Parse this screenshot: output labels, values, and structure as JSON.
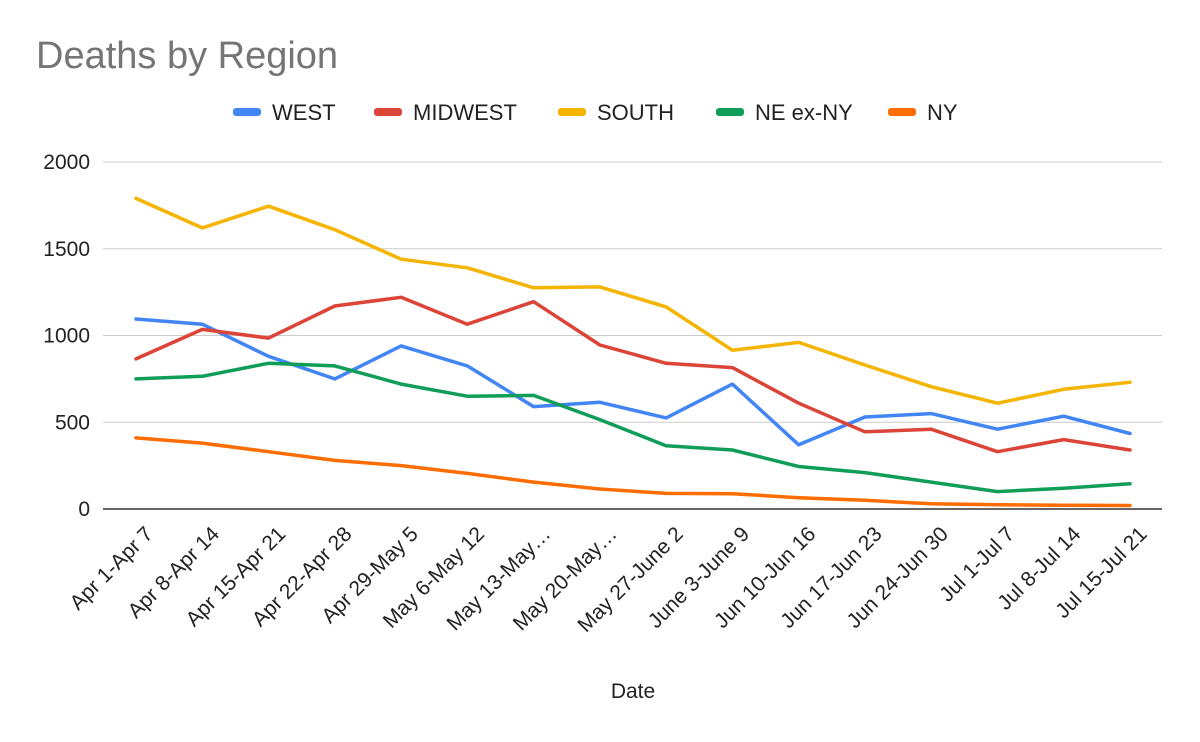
{
  "chart_data": {
    "type": "line",
    "title": "Deaths by Region",
    "xlabel": "Date",
    "ylabel": "",
    "ylim": [
      0,
      2000
    ],
    "yticks": [
      0,
      500,
      1000,
      1500,
      2000
    ],
    "grid": true,
    "legend_position": "top",
    "categories": [
      "Apr 1-Apr 7",
      "Apr 8-Apr 14",
      "Apr 15-Apr 21",
      "Apr 22-Apr 28",
      "Apr 29-May 5",
      "May 6-May 12",
      "May 13-May…",
      "May 20-May…",
      "May 27-June 2",
      "June 3-June 9",
      "Jun 10-Jun 16",
      "Jun 17-Jun 23",
      "Jun 24-Jun 30",
      "Jul 1-Jul 7",
      "Jul 8-Jul 14",
      "Jul 15-Jul 21"
    ],
    "series": [
      {
        "name": "WEST",
        "color": "#4285f4",
        "values": [
          1095,
          1065,
          880,
          750,
          940,
          825,
          590,
          615,
          525,
          720,
          370,
          530,
          550,
          460,
          535,
          435
        ]
      },
      {
        "name": "MIDWEST",
        "color": "#db4437",
        "values": [
          865,
          1035,
          985,
          1170,
          1220,
          1065,
          1195,
          945,
          840,
          815,
          610,
          445,
          460,
          330,
          400,
          340
        ]
      },
      {
        "name": "SOUTH",
        "color": "#f4b400",
        "values": [
          1790,
          1620,
          1745,
          1610,
          1440,
          1390,
          1275,
          1280,
          1165,
          915,
          960,
          830,
          705,
          610,
          690,
          730
        ]
      },
      {
        "name": "NE ex-NY",
        "color": "#0f9d58",
        "values": [
          750,
          765,
          840,
          825,
          720,
          650,
          655,
          515,
          365,
          340,
          245,
          210,
          155,
          100,
          120,
          145
        ]
      },
      {
        "name": "NY",
        "color": "#ff6d01",
        "values": [
          410,
          380,
          330,
          280,
          250,
          205,
          155,
          115,
          90,
          88,
          65,
          50,
          30,
          25,
          22,
          20
        ]
      }
    ]
  }
}
